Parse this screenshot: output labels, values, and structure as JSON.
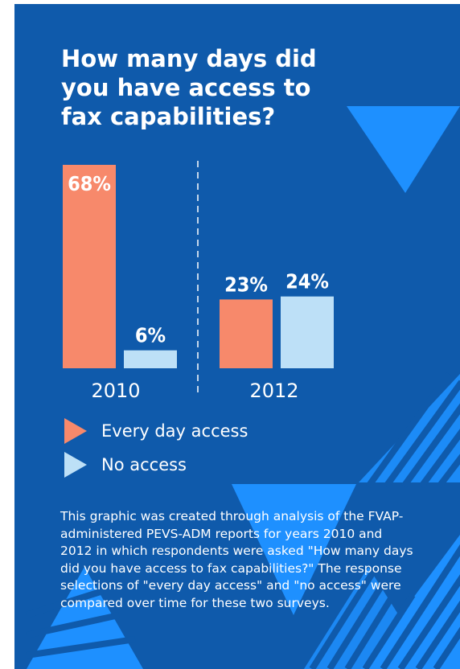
{
  "title": "How many days did you have access to fax capabilities?",
  "colors": {
    "background": "#0f5aab",
    "every_day": "#f7896b",
    "no_access": "#bde0f7",
    "accent": "#1e90ff"
  },
  "chart_data": {
    "type": "bar",
    "categories": [
      "2010",
      "2012"
    ],
    "series": [
      {
        "name": "Every day access",
        "values": [
          68,
          23
        ],
        "labels": [
          "68%",
          "23%"
        ]
      },
      {
        "name": "No access",
        "values": [
          6,
          24
        ],
        "labels": [
          "6%",
          "24%"
        ]
      }
    ],
    "ylim": [
      0,
      68
    ],
    "grid": false
  },
  "legend": {
    "items": [
      {
        "label": "Every day access",
        "icon": "triangle-right-icon"
      },
      {
        "label": "No access",
        "icon": "triangle-right-icon"
      }
    ]
  },
  "description": "This graphic was created through analysis of the FVAP-administered PEVS-ADM reports for years 2010 and 2012 in which respondents were asked \"How many days did you have access to fax capabilities?\" The response selections of \"every day access\" and \"no access\" were compared over time for these two surveys."
}
